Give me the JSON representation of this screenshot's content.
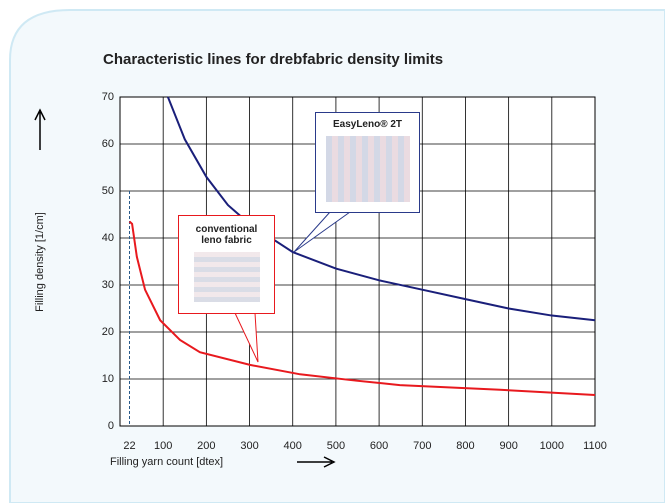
{
  "chart_data": {
    "type": "line",
    "title": "Characteristic lines for drebfabric density limits",
    "xlabel": "Filling yarn count   [dtex]",
    "ylabel": "Filling density   [1/cm]",
    "xlim": [
      0,
      1100
    ],
    "ylim": [
      0,
      70
    ],
    "xticks": [
      22,
      100,
      200,
      300,
      400,
      500,
      600,
      700,
      800,
      900,
      1000,
      1100
    ],
    "yticks": [
      0,
      10,
      20,
      30,
      40,
      50,
      60,
      70
    ],
    "reference_x": 22,
    "grid": true,
    "series": [
      {
        "name": "conventional leno fabric",
        "color": "#e8191e",
        "x": [
          22,
          28,
          39,
          58,
          93,
          139,
          185,
          301,
          417,
          532,
          648,
          880,
          1100
        ],
        "values": [
          43.5,
          43,
          36,
          29,
          22.5,
          18.3,
          15.7,
          13,
          11,
          9.8,
          8.7,
          7.7,
          6.6
        ]
      },
      {
        "name": "EasyLeno® 2T",
        "color": "#1a1f7a",
        "x": [
          111,
          150,
          200,
          250,
          300,
          400,
          500,
          600,
          700,
          800,
          900,
          1000,
          1100
        ],
        "values": [
          70,
          61,
          53,
          47,
          43,
          37,
          33.5,
          31,
          29,
          27,
          25,
          23.5,
          22.5
        ]
      }
    ]
  }
}
